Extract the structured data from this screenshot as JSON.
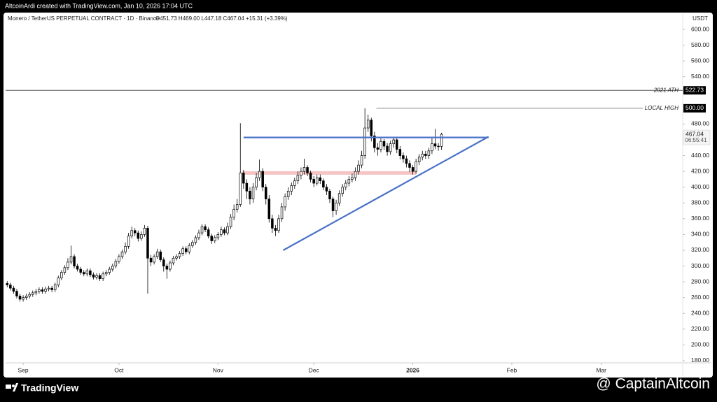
{
  "header": {
    "credit": "AltcoinArdi created with TradingView.com, Jan 10, 2026 17:04 UTC"
  },
  "footer": {
    "brand": "TradingView",
    "watermark": "@ CaptainAltcoin"
  },
  "chart_data": {
    "type": "candlestick",
    "title": "Monero / TetherUS PERPETUAL CONTRACT · 1D · Binance",
    "ohlc_label": "O451.73 H469.00 L447.18 C467.04 +15.31 (+3.39%)",
    "y_unit": "USDT",
    "up_color": "#ffffff",
    "down_color": "#000000",
    "wick_color": "#000000",
    "grid": false,
    "xlim": [
      -0.5,
      211.5
    ],
    "xticks": [
      {
        "value": 5,
        "label": "Sep"
      },
      {
        "value": 35,
        "label": "Oct"
      },
      {
        "value": 66,
        "label": "Nov"
      },
      {
        "value": 96,
        "label": "Dec"
      },
      {
        "value": 127,
        "label": "2026",
        "bold": true
      },
      {
        "value": 158,
        "label": "Feb"
      },
      {
        "value": 186,
        "label": "Mar"
      }
    ],
    "ylim": [
      178.2,
      619.5
    ],
    "yticks": [
      {
        "value": 180,
        "label": "180.00"
      },
      {
        "value": 200,
        "label": "200.00"
      },
      {
        "value": 220,
        "label": "220.00"
      },
      {
        "value": 240,
        "label": "240.00"
      },
      {
        "value": 260,
        "label": "260.00"
      },
      {
        "value": 280,
        "label": "280.00"
      },
      {
        "value": 300,
        "label": "300.00"
      },
      {
        "value": 320,
        "label": "320.00"
      },
      {
        "value": 340,
        "label": "340.00"
      },
      {
        "value": 360,
        "label": "360.00"
      },
      {
        "value": 380,
        "label": "380.00"
      },
      {
        "value": 400,
        "label": "400.00"
      },
      {
        "value": 420,
        "label": "420.00"
      },
      {
        "value": 440,
        "label": "440.00"
      },
      {
        "value": 460,
        "label": "460.00"
      },
      {
        "value": 480,
        "label": "480.00"
      },
      {
        "value": 540,
        "label": "540.00"
      },
      {
        "value": 560,
        "label": "560.00"
      },
      {
        "value": 580,
        "label": "580.00"
      },
      {
        "value": 600,
        "label": "600.00"
      }
    ],
    "open": [
      278,
      276,
      272,
      268,
      262,
      258,
      260,
      262,
      264,
      266,
      268,
      270,
      268,
      271,
      272,
      270,
      276,
      285,
      292,
      298,
      305,
      312,
      300,
      296,
      292,
      290,
      294,
      289,
      286,
      288,
      284,
      290,
      292,
      296,
      300,
      306,
      312,
      318,
      325,
      338,
      345,
      342,
      335,
      340,
      348,
      310,
      305,
      312,
      318,
      308,
      300,
      296,
      304,
      310,
      312,
      316,
      322,
      318,
      326,
      330,
      336,
      342,
      350,
      346,
      338,
      332,
      336,
      340,
      346,
      342,
      350,
      362,
      372,
      378,
      418,
      405,
      395,
      385,
      400,
      412,
      420,
      400,
      385,
      360,
      348,
      345,
      360,
      375,
      388,
      395,
      402,
      408,
      415,
      420,
      425,
      418,
      410,
      405,
      412,
      408,
      400,
      395,
      385,
      370,
      380,
      392,
      400,
      405,
      410,
      412,
      420,
      428,
      440,
      475,
      485,
      465,
      450,
      448,
      458,
      452,
      445,
      455,
      460,
      448,
      440,
      436,
      430,
      425,
      420,
      432,
      438,
      442,
      440,
      446,
      455,
      452,
      451.73
    ],
    "high": [
      281,
      279,
      275,
      271,
      265,
      263,
      265,
      267,
      269,
      271,
      273,
      273,
      274,
      275,
      275,
      279,
      288,
      295,
      301,
      310,
      326,
      315,
      303,
      299,
      295,
      297,
      297,
      292,
      291,
      291,
      293,
      295,
      299,
      303,
      309,
      315,
      321,
      330,
      342,
      350,
      348,
      345,
      344,
      352,
      351,
      314,
      315,
      322,
      321,
      311,
      303,
      307,
      313,
      315,
      319,
      325,
      325,
      329,
      333,
      339,
      346,
      353,
      353,
      349,
      341,
      339,
      343,
      350,
      349,
      355,
      366,
      378,
      385,
      481,
      422,
      410,
      400,
      405,
      418,
      435,
      424,
      404,
      390,
      365,
      352,
      365,
      380,
      392,
      400,
      406,
      412,
      420,
      425,
      436,
      428,
      421,
      414,
      416,
      416,
      411,
      404,
      398,
      388,
      384,
      396,
      404,
      409,
      414,
      417,
      425,
      434,
      446,
      500,
      492,
      488,
      470,
      456,
      462,
      461,
      456,
      459,
      463,
      462,
      452,
      444,
      440,
      434,
      428,
      436,
      442,
      446,
      446,
      450,
      462,
      474,
      456,
      469
    ],
    "low": [
      273,
      269,
      265,
      259,
      255,
      255,
      257,
      259,
      261,
      263,
      265,
      265,
      265,
      268,
      267,
      267,
      273,
      282,
      289,
      295,
      302,
      297,
      293,
      289,
      287,
      287,
      286,
      283,
      283,
      281,
      281,
      287,
      289,
      293,
      297,
      303,
      309,
      315,
      322,
      335,
      338,
      331,
      332,
      337,
      265,
      300,
      302,
      309,
      305,
      293,
      284,
      293,
      301,
      307,
      309,
      313,
      315,
      315,
      323,
      327,
      333,
      339,
      343,
      335,
      328,
      329,
      333,
      337,
      339,
      339,
      347,
      358,
      368,
      375,
      398,
      385,
      378,
      380,
      396,
      408,
      395,
      378,
      355,
      342,
      338,
      342,
      356,
      370,
      384,
      390,
      398,
      404,
      410,
      416,
      414,
      406,
      400,
      402,
      404,
      396,
      390,
      380,
      362,
      365,
      376,
      388,
      396,
      401,
      406,
      408,
      416,
      424,
      436,
      470,
      458,
      444,
      440,
      444,
      447,
      440,
      441,
      450,
      443,
      435,
      431,
      425,
      419,
      416,
      417,
      428,
      434,
      436,
      436,
      442,
      448,
      446,
      447.18
    ],
    "close": [
      276,
      272,
      268,
      262,
      258,
      260,
      262,
      264,
      266,
      268,
      270,
      268,
      271,
      272,
      270,
      276,
      285,
      292,
      298,
      305,
      312,
      300,
      296,
      292,
      290,
      294,
      289,
      286,
      288,
      284,
      290,
      292,
      296,
      300,
      306,
      312,
      318,
      325,
      338,
      345,
      342,
      335,
      340,
      348,
      310,
      305,
      312,
      318,
      308,
      300,
      296,
      304,
      310,
      312,
      316,
      322,
      318,
      326,
      330,
      336,
      342,
      350,
      346,
      338,
      332,
      336,
      340,
      346,
      342,
      350,
      362,
      372,
      378,
      418,
      405,
      395,
      385,
      400,
      412,
      420,
      400,
      385,
      360,
      348,
      345,
      360,
      375,
      388,
      395,
      402,
      408,
      415,
      420,
      425,
      418,
      410,
      405,
      412,
      408,
      400,
      395,
      385,
      370,
      380,
      392,
      400,
      405,
      410,
      412,
      420,
      428,
      440,
      475,
      485,
      465,
      450,
      448,
      458,
      452,
      445,
      455,
      460,
      448,
      440,
      436,
      430,
      425,
      420,
      432,
      438,
      442,
      440,
      446,
      455,
      452,
      451.73,
      467.04
    ],
    "countdown": "06:55:41",
    "hlines": [
      {
        "label": "2021 ATH",
        "value": 522.73,
        "x": [
          -0.5,
          211.5
        ],
        "color": "#555555"
      },
      {
        "label": "LOCAL HIGH",
        "value": 500,
        "value_label": "500.00",
        "x": [
          115.6,
          199
        ],
        "color": "#888888"
      }
    ],
    "zones": [
      {
        "x": [
          73.5,
          128
        ],
        "y": 418,
        "color": "#f6c4c4"
      }
    ],
    "trendlines": [
      {
        "x": [
          74,
          150.7
        ],
        "y": [
          463,
          463
        ],
        "color": "#4a72c8"
      },
      {
        "x": [
          86.4,
          150.7
        ],
        "y": [
          320,
          464
        ],
        "color": "#4a72c8"
      }
    ]
  }
}
